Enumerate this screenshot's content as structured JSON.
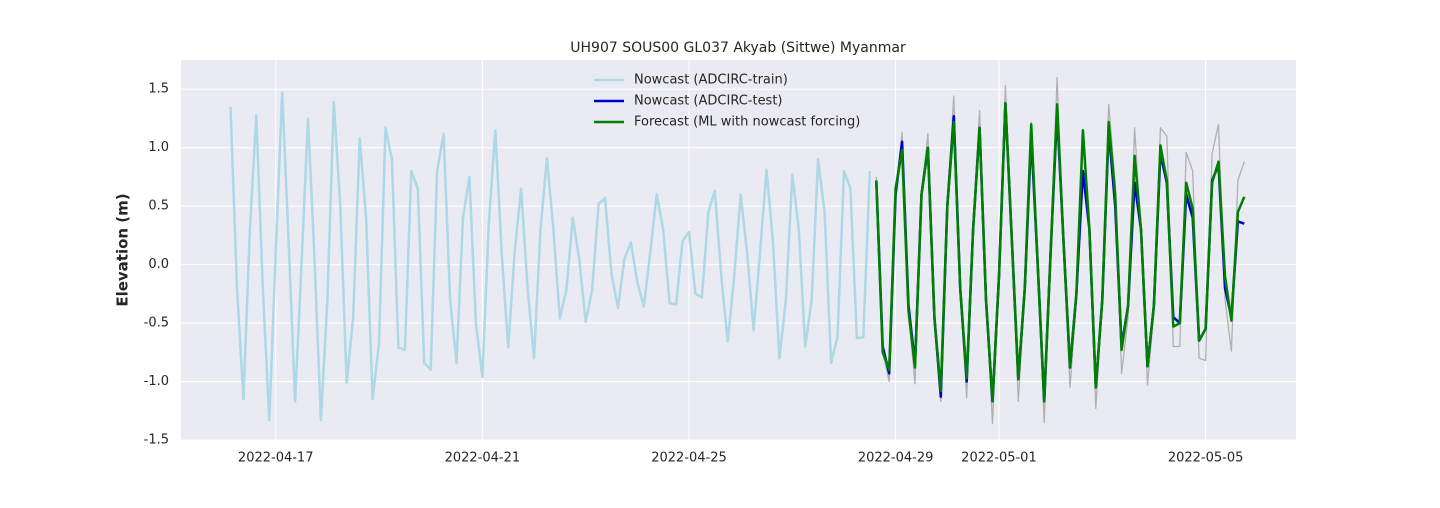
{
  "chart_data": {
    "type": "line",
    "title": "UH907 SOUS00 GL037 Akyab (Sittwe) Myanmar",
    "ylabel": "Elevation (m)",
    "xlim": [
      "2022-04-15 04:00",
      "2022-05-06 18:00"
    ],
    "xticks": [
      "2022-04-17",
      "2022-04-21",
      "2022-04-25",
      "2022-04-29",
      "2022-05-01",
      "2022-05-05"
    ],
    "ylim": [
      -1.5,
      1.75
    ],
    "yticks": [
      {
        "value": -1.5,
        "label": "-1.5"
      },
      {
        "value": -1,
        "label": "-1.0"
      },
      {
        "value": -0.5,
        "label": "-0.5"
      },
      {
        "value": 0,
        "label": "0.0"
      },
      {
        "value": 0.5,
        "label": "0.5"
      },
      {
        "value": 1,
        "label": "1.0"
      },
      {
        "value": 1.5,
        "label": "1.5"
      }
    ],
    "grid": true,
    "legend": "upper center",
    "series": [
      {
        "name": "Nowcast (ADCIRC-train)",
        "color": "#add8e6",
        "x": [
          "2022-04-16 03:00",
          "2022-04-16 06:00",
          "2022-04-16 09:00",
          "2022-04-16 12:00",
          "2022-04-16 15:00",
          "2022-04-16 18:00",
          "2022-04-16 21:00",
          "2022-04-17 00:00",
          "2022-04-17 03:00",
          "2022-04-17 06:00",
          "2022-04-17 09:00",
          "2022-04-17 12:00",
          "2022-04-17 15:00",
          "2022-04-17 18:00",
          "2022-04-17 21:00",
          "2022-04-18 00:00",
          "2022-04-18 03:00",
          "2022-04-18 06:00",
          "2022-04-18 09:00",
          "2022-04-18 12:00",
          "2022-04-18 15:00",
          "2022-04-18 18:00",
          "2022-04-18 21:00",
          "2022-04-19 00:00",
          "2022-04-19 03:00",
          "2022-04-19 06:00",
          "2022-04-19 09:00",
          "2022-04-19 12:00",
          "2022-04-19 15:00",
          "2022-04-19 18:00",
          "2022-04-19 21:00",
          "2022-04-20 00:00",
          "2022-04-20 03:00",
          "2022-04-20 06:00",
          "2022-04-20 09:00",
          "2022-04-20 12:00",
          "2022-04-20 15:00",
          "2022-04-20 18:00",
          "2022-04-20 21:00",
          "2022-04-21 00:00",
          "2022-04-21 03:00",
          "2022-04-21 06:00",
          "2022-04-21 09:00",
          "2022-04-21 12:00",
          "2022-04-21 15:00",
          "2022-04-21 18:00",
          "2022-04-21 21:00",
          "2022-04-22 00:00",
          "2022-04-22 03:00",
          "2022-04-22 06:00",
          "2022-04-22 09:00",
          "2022-04-22 12:00",
          "2022-04-22 15:00",
          "2022-04-22 18:00",
          "2022-04-22 21:00",
          "2022-04-23 00:00",
          "2022-04-23 03:00",
          "2022-04-23 06:00",
          "2022-04-23 09:00",
          "2022-04-23 12:00",
          "2022-04-23 15:00",
          "2022-04-23 18:00",
          "2022-04-23 21:00",
          "2022-04-24 00:00",
          "2022-04-24 03:00",
          "2022-04-24 06:00",
          "2022-04-24 09:00",
          "2022-04-24 12:00",
          "2022-04-24 15:00",
          "2022-04-24 18:00",
          "2022-04-24 21:00",
          "2022-04-25 00:00",
          "2022-04-25 03:00",
          "2022-04-25 06:00",
          "2022-04-25 09:00",
          "2022-04-25 12:00",
          "2022-04-25 15:00",
          "2022-04-25 18:00",
          "2022-04-25 21:00",
          "2022-04-26 00:00",
          "2022-04-26 03:00",
          "2022-04-26 06:00",
          "2022-04-26 09:00",
          "2022-04-26 12:00",
          "2022-04-26 15:00",
          "2022-04-26 18:00",
          "2022-04-26 21:00",
          "2022-04-27 00:00",
          "2022-04-27 03:00",
          "2022-04-27 06:00",
          "2022-04-27 09:00",
          "2022-04-27 12:00",
          "2022-04-27 15:00",
          "2022-04-27 18:00",
          "2022-04-27 21:00",
          "2022-04-28 00:00",
          "2022-04-28 03:00",
          "2022-04-28 06:00",
          "2022-04-28 09:00",
          "2022-04-28 12:00"
        ],
        "values": [
          1.35,
          -0.2,
          -1.15,
          0.3,
          1.28,
          -0.2,
          -1.33,
          0.1,
          1.47,
          0.2,
          -1.17,
          0.0,
          1.25,
          0.05,
          -1.33,
          -0.3,
          1.39,
          0.5,
          -1.01,
          -0.45,
          1.08,
          0.4,
          -1.15,
          -0.67,
          1.17,
          0.9,
          -0.71,
          -0.73,
          0.8,
          0.65,
          -0.84,
          -0.9,
          0.8,
          1.12,
          -0.3,
          -0.84,
          0.4,
          0.75,
          -0.5,
          -0.96,
          0.35,
          1.15,
          0.1,
          -0.71,
          0.1,
          0.65,
          -0.2,
          -0.8,
          0.3,
          0.91,
          0.3,
          -0.46,
          -0.22,
          0.4,
          0.05,
          -0.49,
          -0.22,
          0.52,
          0.57,
          -0.08,
          -0.37,
          0.05,
          0.19,
          -0.15,
          -0.36,
          0.1,
          0.6,
          0.3,
          -0.33,
          -0.34,
          0.2,
          0.28,
          -0.25,
          -0.28,
          0.45,
          0.63,
          -0.1,
          -0.66,
          -0.1,
          0.6,
          0.1,
          -0.56,
          0.1,
          0.81,
          0.2,
          -0.8,
          -0.3,
          0.77,
          0.3,
          -0.7,
          -0.3,
          0.9,
          0.45,
          -0.84,
          -0.62,
          0.8,
          0.65,
          -0.63,
          -0.62,
          0.8
        ]
      },
      {
        "color": "#b0b0b0",
        "x": [
          "2022-04-28 15:00",
          "2022-04-28 18:00",
          "2022-04-28 21:00",
          "2022-04-29 00:00",
          "2022-04-29 03:00",
          "2022-04-29 06:00",
          "2022-04-29 09:00",
          "2022-04-29 12:00",
          "2022-04-29 15:00",
          "2022-04-29 18:00",
          "2022-04-29 21:00",
          "2022-04-30 00:00",
          "2022-04-30 03:00",
          "2022-04-30 06:00",
          "2022-04-30 09:00",
          "2022-04-30 12:00",
          "2022-04-30 15:00",
          "2022-04-30 18:00",
          "2022-04-30 21:00",
          "2022-05-01 00:00",
          "2022-05-01 03:00",
          "2022-05-01 06:00",
          "2022-05-01 09:00",
          "2022-05-01 12:00",
          "2022-05-01 15:00",
          "2022-05-01 18:00",
          "2022-05-01 21:00",
          "2022-05-02 00:00",
          "2022-05-02 03:00",
          "2022-05-02 06:00",
          "2022-05-02 09:00",
          "2022-05-02 12:00",
          "2022-05-02 15:00",
          "2022-05-02 18:00",
          "2022-05-02 21:00",
          "2022-05-03 00:00",
          "2022-05-03 03:00",
          "2022-05-03 06:00",
          "2022-05-03 09:00",
          "2022-05-03 12:00",
          "2022-05-03 15:00",
          "2022-05-03 18:00",
          "2022-05-03 21:00",
          "2022-05-04 00:00",
          "2022-05-04 03:00",
          "2022-05-04 06:00",
          "2022-05-04 09:00",
          "2022-05-04 12:00",
          "2022-05-04 15:00",
          "2022-05-04 18:00",
          "2022-05-04 21:00",
          "2022-05-05 00:00",
          "2022-05-05 03:00",
          "2022-05-05 06:00",
          "2022-05-05 09:00",
          "2022-05-05 12:00",
          "2022-05-05 15:00",
          "2022-05-05 18:00"
        ],
        "values": [
          0.75,
          -0.75,
          -1.0,
          0.6,
          1.13,
          -0.4,
          -1.02,
          0.6,
          1.12,
          -0.5,
          -1.17,
          0.5,
          1.44,
          -0.2,
          -1.14,
          0.35,
          1.32,
          -0.3,
          -1.36,
          -0.1,
          1.53,
          0.2,
          -1.17,
          -0.2,
          1.22,
          0.0,
          -1.35,
          0.1,
          1.6,
          0.2,
          -1.05,
          -0.3,
          1.15,
          0.3,
          -1.23,
          -0.3,
          1.37,
          0.7,
          -0.93,
          -0.45,
          1.17,
          0.3,
          -1.03,
          -0.4,
          1.17,
          1.1,
          -0.7,
          -0.7,
          0.96,
          0.8,
          -0.8,
          -0.82,
          0.95,
          1.2,
          -0.3,
          -0.74,
          0.72,
          0.88
        ]
      },
      {
        "name": "Nowcast (ADCIRC-test)",
        "color": "#0000cd",
        "x": [
          "2022-04-28 15:00",
          "2022-04-28 18:00",
          "2022-04-28 21:00",
          "2022-04-29 00:00",
          "2022-04-29 03:00",
          "2022-04-29 06:00",
          "2022-04-29 09:00",
          "2022-04-29 12:00",
          "2022-04-29 15:00",
          "2022-04-29 18:00",
          "2022-04-29 21:00",
          "2022-04-30 00:00",
          "2022-04-30 03:00",
          "2022-04-30 06:00",
          "2022-04-30 09:00",
          "2022-04-30 12:00",
          "2022-04-30 15:00",
          "2022-04-30 18:00",
          "2022-04-30 21:00",
          "2022-05-01 00:00",
          "2022-05-01 03:00",
          "2022-05-01 06:00",
          "2022-05-01 09:00",
          "2022-05-01 12:00",
          "2022-05-01 15:00",
          "2022-05-01 18:00",
          "2022-05-01 21:00",
          "2022-05-02 00:00",
          "2022-05-02 03:00",
          "2022-05-02 06:00",
          "2022-05-02 09:00",
          "2022-05-02 12:00",
          "2022-05-02 15:00",
          "2022-05-02 18:00",
          "2022-05-02 21:00",
          "2022-05-03 00:00",
          "2022-05-03 03:00",
          "2022-05-03 06:00",
          "2022-05-03 09:00",
          "2022-05-03 12:00",
          "2022-05-03 15:00",
          "2022-05-03 18:00",
          "2022-05-03 21:00",
          "2022-05-04 00:00",
          "2022-05-04 03:00",
          "2022-05-04 06:00",
          "2022-05-04 09:00",
          "2022-05-04 12:00",
          "2022-05-04 15:00",
          "2022-05-04 18:00",
          "2022-05-04 21:00",
          "2022-05-05 00:00",
          "2022-05-05 03:00",
          "2022-05-05 06:00",
          "2022-05-05 09:00",
          "2022-05-05 12:00",
          "2022-05-05 15:00",
          "2022-05-05 18:00"
        ],
        "values": [
          0.72,
          -0.7,
          -0.93,
          0.6,
          1.05,
          -0.35,
          -0.85,
          0.6,
          1.0,
          -0.45,
          -1.13,
          0.5,
          1.27,
          -0.2,
          -1.0,
          0.3,
          1.17,
          -0.3,
          -1.17,
          -0.1,
          1.38,
          0.2,
          -0.98,
          -0.2,
          1.1,
          0.0,
          -1.17,
          0.1,
          1.3,
          0.2,
          -0.88,
          -0.25,
          0.8,
          0.3,
          -1.05,
          -0.3,
          1.15,
          0.5,
          -0.7,
          -0.35,
          0.7,
          0.3,
          -0.87,
          -0.35,
          0.95,
          0.7,
          -0.45,
          -0.5,
          0.6,
          0.4,
          -0.65,
          -0.55,
          0.72,
          0.85,
          -0.2,
          -0.45,
          0.37,
          0.35
        ]
      },
      {
        "name": "Forecast (ML with nowcast forcing)",
        "color": "#008000",
        "x": [
          "2022-04-28 15:00",
          "2022-04-28 18:00",
          "2022-04-28 21:00",
          "2022-04-29 00:00",
          "2022-04-29 03:00",
          "2022-04-29 06:00",
          "2022-04-29 09:00",
          "2022-04-29 12:00",
          "2022-04-29 15:00",
          "2022-04-29 18:00",
          "2022-04-29 21:00",
          "2022-04-30 00:00",
          "2022-04-30 03:00",
          "2022-04-30 06:00",
          "2022-04-30 09:00",
          "2022-04-30 12:00",
          "2022-04-30 15:00",
          "2022-04-30 18:00",
          "2022-04-30 21:00",
          "2022-05-01 00:00",
          "2022-05-01 03:00",
          "2022-05-01 06:00",
          "2022-05-01 09:00",
          "2022-05-01 12:00",
          "2022-05-01 15:00",
          "2022-05-01 18:00",
          "2022-05-01 21:00",
          "2022-05-02 00:00",
          "2022-05-02 03:00",
          "2022-05-02 06:00",
          "2022-05-02 09:00",
          "2022-05-02 12:00",
          "2022-05-02 15:00",
          "2022-05-02 18:00",
          "2022-05-02 21:00",
          "2022-05-03 00:00",
          "2022-05-03 03:00",
          "2022-05-03 06:00",
          "2022-05-03 09:00",
          "2022-05-03 12:00",
          "2022-05-03 15:00",
          "2022-05-03 18:00",
          "2022-05-03 21:00",
          "2022-05-04 00:00",
          "2022-05-04 03:00",
          "2022-05-04 06:00",
          "2022-05-04 09:00",
          "2022-05-04 12:00",
          "2022-05-04 15:00",
          "2022-05-04 18:00",
          "2022-05-04 21:00",
          "2022-05-05 00:00",
          "2022-05-05 03:00",
          "2022-05-05 06:00",
          "2022-05-05 09:00",
          "2022-05-05 12:00",
          "2022-05-05 15:00",
          "2022-05-05 18:00"
        ],
        "values": [
          0.72,
          -0.75,
          -0.9,
          0.65,
          0.98,
          -0.4,
          -0.88,
          0.6,
          1.0,
          -0.45,
          -1.08,
          0.5,
          1.22,
          -0.2,
          -0.97,
          0.3,
          1.17,
          -0.3,
          -1.17,
          -0.1,
          1.38,
          0.2,
          -0.98,
          -0.2,
          1.2,
          0.0,
          -1.17,
          0.1,
          1.37,
          0.2,
          -0.88,
          -0.25,
          1.15,
          0.3,
          -1.05,
          -0.3,
          1.22,
          0.6,
          -0.73,
          -0.35,
          0.93,
          0.3,
          -0.87,
          -0.35,
          1.02,
          0.72,
          -0.53,
          -0.5,
          0.7,
          0.48,
          -0.65,
          -0.55,
          0.7,
          0.88,
          -0.1,
          -0.48,
          0.45,
          0.58
        ]
      }
    ]
  }
}
